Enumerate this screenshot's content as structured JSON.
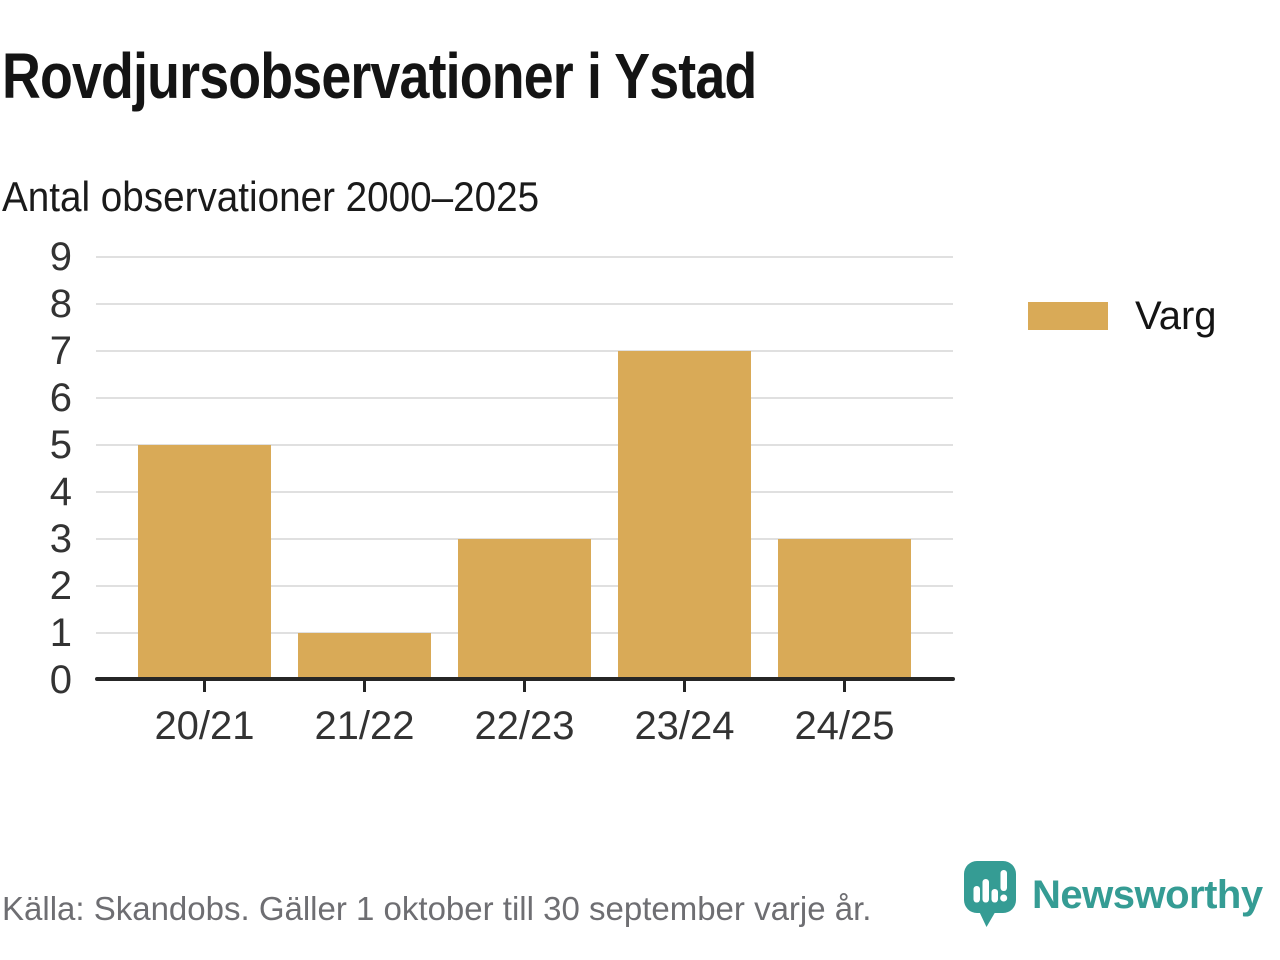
{
  "title": "Rovdjursobservationer i Ystad",
  "subtitle": "Antal observationer 2000–2025",
  "legend": {
    "label": "Varg"
  },
  "footer": {
    "source": "Källa: Skandobs. Gäller 1 oktober till 30 september varje år.",
    "brand": "Newsworthy"
  },
  "colors": {
    "bar": "#d9aa57",
    "teal": "#359c94",
    "gridline": "#e0e0e0",
    "axis": "#262626",
    "text_gray": "#6e6e72"
  },
  "chart_data": {
    "type": "bar",
    "title": "Rovdjursobservationer i Ystad",
    "subtitle": "Antal observationer 2000–2025",
    "categories": [
      "20/21",
      "21/22",
      "22/23",
      "23/24",
      "24/25"
    ],
    "series": [
      {
        "name": "Varg",
        "values": [
          5,
          1,
          3,
          7,
          3
        ]
      }
    ],
    "xlabel": "",
    "ylabel": "",
    "ylim": [
      0,
      9
    ],
    "yticks": [
      0,
      1,
      2,
      3,
      4,
      5,
      6,
      7,
      8,
      9
    ],
    "grid": "horizontal-only",
    "legend_position": "right",
    "bar_color": "#d9aa57"
  }
}
